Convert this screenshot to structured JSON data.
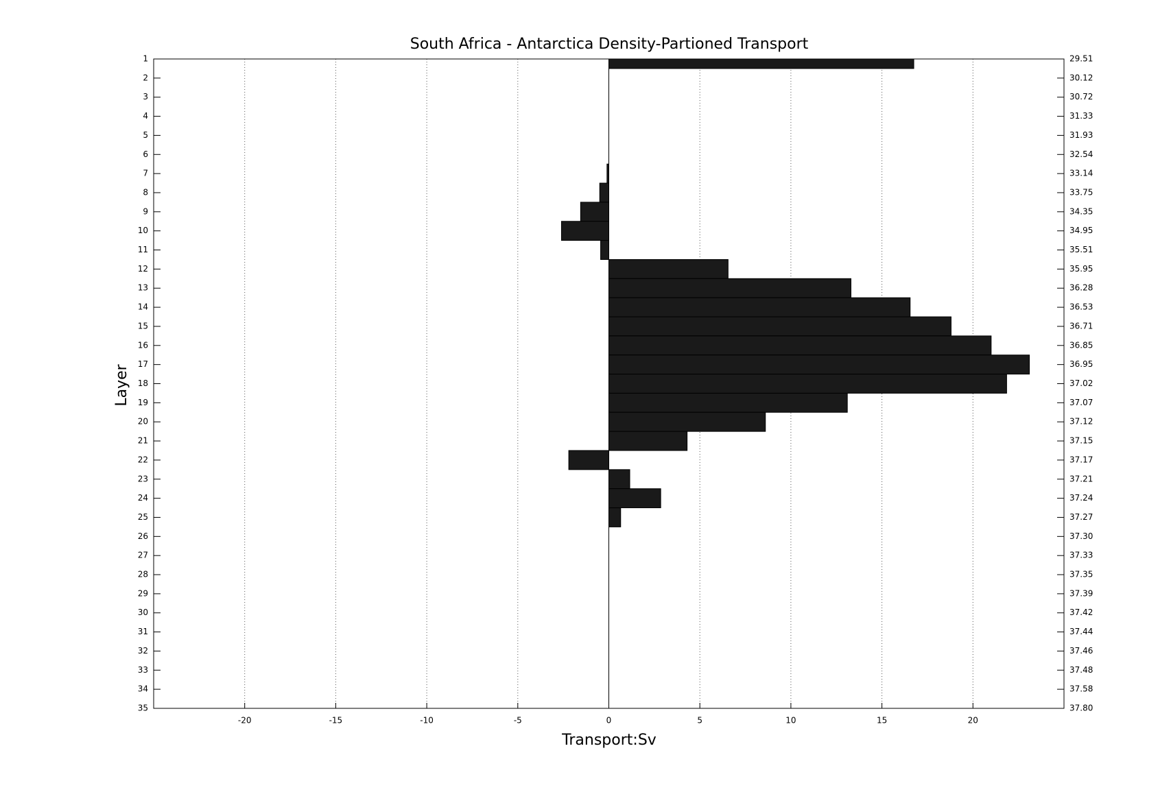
{
  "chart_data": {
    "type": "barh",
    "title": "South Africa - Antarctica Density-Partioned Transport",
    "x_label": "Transport:Sv",
    "y_label": "Layer",
    "categories": [
      1,
      2,
      3,
      4,
      5,
      6,
      7,
      8,
      9,
      10,
      11,
      12,
      13,
      14,
      15,
      16,
      17,
      18,
      19,
      20,
      21,
      22,
      23,
      24,
      25,
      26,
      27,
      28,
      29,
      30,
      31,
      32,
      33,
      34,
      35
    ],
    "values": [
      16.75,
      0,
      0,
      0,
      0,
      0,
      -0.1,
      -0.5,
      -1.55,
      -2.6,
      -0.45,
      6.55,
      13.3,
      16.55,
      18.8,
      21.0,
      23.1,
      21.85,
      13.1,
      8.6,
      4.3,
      -2.2,
      1.15,
      2.85,
      0.65,
      0,
      0,
      0,
      0,
      0,
      0,
      0,
      0,
      0,
      0
    ],
    "color": "#1a1a1a",
    "xlim": [
      -25,
      25
    ],
    "xticks": [
      -20,
      -15,
      -10,
      -5,
      0,
      5,
      10,
      15,
      20
    ],
    "ylim": [
      1,
      35
    ],
    "y_reversed": true,
    "y2lim": [
      1,
      35
    ],
    "y2ticks": [
      {
        "value": 1,
        "label": "29.51"
      },
      {
        "value": 2,
        "label": "30.12"
      },
      {
        "value": 3,
        "label": "30.72"
      },
      {
        "value": 4,
        "label": "31.33"
      },
      {
        "value": 5,
        "label": "31.93"
      },
      {
        "value": 6,
        "label": "32.54"
      },
      {
        "value": 7,
        "label": "33.14"
      },
      {
        "value": 8,
        "label": "33.75"
      },
      {
        "value": 9,
        "label": "34.35"
      },
      {
        "value": 10,
        "label": "34.95"
      },
      {
        "value": 11,
        "label": "35.51"
      },
      {
        "value": 12,
        "label": "35.95"
      },
      {
        "value": 13,
        "label": "36.28"
      },
      {
        "value": 14,
        "label": "36.53"
      },
      {
        "value": 15,
        "label": "36.71"
      },
      {
        "value": 16,
        "label": "36.85"
      },
      {
        "value": 17,
        "label": "36.95"
      },
      {
        "value": 18,
        "label": "37.02"
      },
      {
        "value": 19,
        "label": "37.07"
      },
      {
        "value": 20,
        "label": "37.12"
      },
      {
        "value": 21,
        "label": "37.15"
      },
      {
        "value": 22,
        "label": "37.17"
      },
      {
        "value": 23,
        "label": "37.21"
      },
      {
        "value": 24,
        "label": "37.24"
      },
      {
        "value": 25,
        "label": "37.27"
      },
      {
        "value": 26,
        "label": "37.30"
      },
      {
        "value": 27,
        "label": "37.33"
      },
      {
        "value": 28,
        "label": "37.35"
      },
      {
        "value": 29,
        "label": "37.39"
      },
      {
        "value": 30,
        "label": "37.42"
      },
      {
        "value": 31,
        "label": "37.44"
      },
      {
        "value": 32,
        "label": "37.46"
      },
      {
        "value": 33,
        "label": "37.48"
      },
      {
        "value": 34,
        "label": "37.58"
      },
      {
        "value": 35,
        "label": "37.80"
      }
    ],
    "grid": true
  }
}
